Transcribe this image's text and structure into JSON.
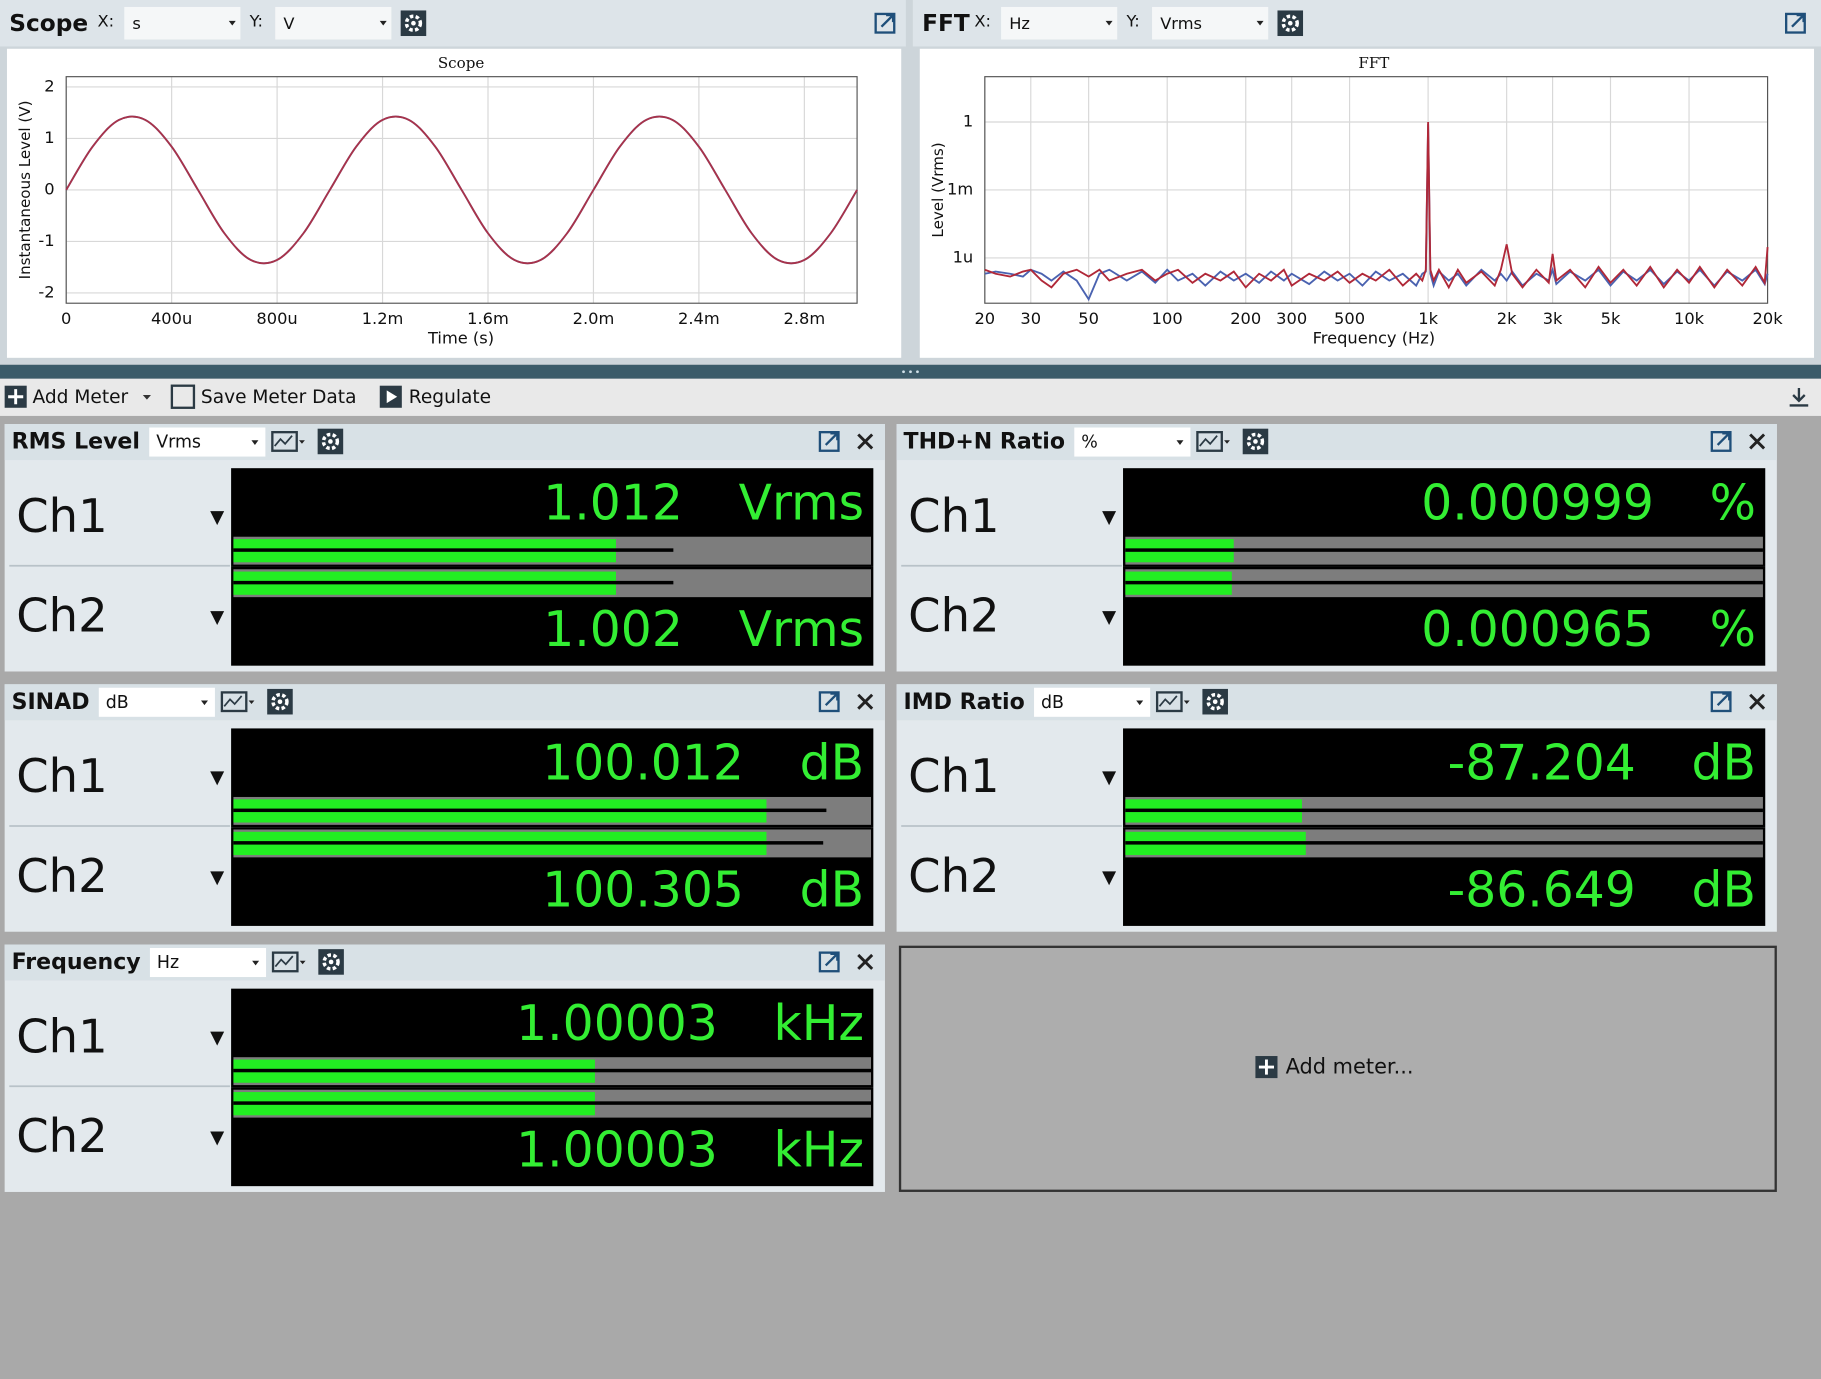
{
  "scope_panel": {
    "title": "Scope",
    "x_label": "X:",
    "x_unit": "s",
    "y_label": "Y:",
    "y_unit": "V"
  },
  "fft_panel": {
    "title": "FFT",
    "x_label": "X:",
    "x_unit": "Hz",
    "y_label": "Y:",
    "y_unit": "Vrms"
  },
  "chart_data": [
    {
      "type": "line",
      "title": "Scope",
      "x_label": "Time (s)",
      "y_label": "Instantaneous Level (V)",
      "x": [
        0,
        0.0001,
        0.0002,
        0.0003,
        0.0004,
        0.0005,
        0.0006,
        0.0007,
        0.0008,
        0.0009,
        0.001,
        0.0011,
        0.0012,
        0.0013,
        0.0014,
        0.0015,
        0.0016,
        0.0017,
        0.0018,
        0.0019,
        0.002,
        0.0021,
        0.0022,
        0.0023,
        0.0024,
        0.0025,
        0.0026,
        0.0027,
        0.0028,
        0.0029,
        0.003
      ],
      "series": [
        {
          "color": "#5a6fb8",
          "values": [
            0,
            0.841,
            1.36,
            1.36,
            0.841,
            0,
            -0.841,
            -1.36,
            -1.36,
            -0.841,
            0,
            0.841,
            1.36,
            1.36,
            0.841,
            0,
            -0.841,
            -1.36,
            -1.36,
            -0.841,
            0,
            0.841,
            1.36,
            1.36,
            0.841,
            0,
            -0.841,
            -1.36,
            -1.36,
            -0.841,
            0
          ]
        },
        {
          "color": "#a8334a",
          "values": [
            0,
            0.841,
            1.36,
            1.36,
            0.841,
            0,
            -0.841,
            -1.36,
            -1.36,
            -0.841,
            0,
            0.841,
            1.36,
            1.36,
            0.841,
            0,
            -0.841,
            -1.36,
            -1.36,
            -0.841,
            0,
            0.841,
            1.36,
            1.36,
            0.841,
            0,
            -0.841,
            -1.36,
            -1.36,
            -0.841,
            0
          ]
        }
      ],
      "xlim": [
        0,
        0.003
      ],
      "xticks": [
        0,
        {
          "value": 0.0004,
          "label": "400u"
        },
        {
          "value": 0.0008,
          "label": "800u"
        },
        {
          "value": 0.0012,
          "label": "1.2m"
        },
        {
          "value": 0.0016,
          "label": "1.6m"
        },
        {
          "value": 0.002,
          "label": "2.0m"
        },
        {
          "value": 0.0024,
          "label": "2.4m"
        },
        {
          "value": 0.0028,
          "label": "2.8m"
        }
      ],
      "ylim": [
        -2.2,
        2.2
      ],
      "yticks": [
        -2,
        -1,
        0,
        1,
        2
      ],
      "grid": true
    },
    {
      "type": "line",
      "title": "FFT",
      "x_label": "Frequency (Hz)",
      "y_label": "Level (Vrms)",
      "log_x": true,
      "log_y": true,
      "x": [
        20,
        22,
        25,
        28,
        30,
        33,
        36,
        40,
        45,
        50,
        55,
        60,
        70,
        80,
        90,
        100,
        110,
        125,
        140,
        160,
        180,
        200,
        225,
        250,
        280,
        300,
        350,
        400,
        450,
        500,
        560,
        630,
        710,
        800,
        900,
        950,
        980,
        1000,
        1020,
        1050,
        1100,
        1200,
        1300,
        1400,
        1600,
        1800,
        1900,
        2000,
        2100,
        2300,
        2600,
        2900,
        3000,
        3100,
        3500,
        4000,
        4500,
        5000,
        5600,
        6300,
        7100,
        8000,
        9000,
        10000,
        11000,
        12500,
        14000,
        16000,
        18000,
        19500,
        20000
      ],
      "series": [
        {
          "color": "#4a62b0",
          "values": [
            2e-07,
            2.5e-07,
            2e-07,
            1.5e-07,
            3e-07,
            2e-07,
            1e-07,
            2.5e-07,
            1e-07,
            1.5e-08,
            2e-07,
            3e-07,
            1e-07,
            2.5e-07,
            8e-08,
            3e-07,
            1e-07,
            2e-07,
            6e-08,
            2.5e-07,
            1e-07,
            2e-07,
            8e-08,
            2.5e-07,
            1e-07,
            2e-07,
            7e-08,
            2.5e-07,
            1e-07,
            2e-07,
            6e-08,
            2.5e-07,
            1e-07,
            2e-07,
            6e-08,
            2e-07,
            2.5e-07,
            0.8,
            2e-07,
            6e-08,
            2.5e-07,
            1e-07,
            2e-07,
            6e-08,
            3e-07,
            1e-07,
            2e-07,
            1e-07,
            2.5e-07,
            6e-08,
            2e-07,
            1e-07,
            3e-07,
            7e-08,
            2.5e-07,
            1e-07,
            3e-07,
            6e-08,
            2.5e-07,
            1e-07,
            3e-07,
            7e-08,
            2.5e-07,
            1e-07,
            3e-07,
            6e-08,
            2.5e-07,
            1e-07,
            3e-07,
            7e-08,
            2e-07
          ]
        },
        {
          "color": "#b02838",
          "values": [
            3e-07,
            2e-07,
            1.5e-07,
            2.5e-07,
            3e-07,
            1e-07,
            5e-08,
            2e-07,
            3e-07,
            1.5e-07,
            3e-07,
            1e-07,
            2e-07,
            3e-07,
            1e-07,
            2e-07,
            3e-07,
            8e-08,
            2e-07,
            1e-07,
            2.5e-07,
            5e-08,
            2e-07,
            1e-07,
            3e-07,
            6e-08,
            2e-07,
            1e-07,
            2.5e-07,
            8e-08,
            2e-07,
            1e-07,
            3e-07,
            6e-08,
            2e-07,
            1e-07,
            3e-07,
            1,
            3e-07,
            1e-07,
            3e-07,
            5e-08,
            3e-07,
            8e-08,
            2.5e-07,
            6e-08,
            3e-07,
            4e-06,
            2e-07,
            5e-08,
            3e-07,
            8e-08,
            1.5e-06,
            1e-07,
            3e-07,
            5e-08,
            4e-07,
            8e-08,
            3e-07,
            6e-08,
            4e-07,
            5e-08,
            3e-07,
            8e-08,
            4e-07,
            5e-08,
            3e-07,
            6e-08,
            4e-07,
            8e-08,
            3e-06
          ]
        }
      ],
      "xlim": [
        20,
        20000
      ],
      "xticks": [
        20,
        30,
        50,
        100,
        200,
        300,
        500,
        {
          "value": 1000,
          "label": "1k"
        },
        {
          "value": 2000,
          "label": "2k"
        },
        {
          "value": 3000,
          "label": "3k"
        },
        {
          "value": 5000,
          "label": "5k"
        },
        {
          "value": 10000,
          "label": "10k"
        },
        {
          "value": 20000,
          "label": "20k"
        }
      ],
      "ylim": [
        1e-08,
        100
      ],
      "yticks": [
        1,
        {
          "value": 0.001,
          "label": "1m"
        },
        {
          "value": 1e-06,
          "label": "1u"
        }
      ],
      "grid": true
    }
  ],
  "toolbar": {
    "add_meter": "Add Meter",
    "save_meter_data": "Save Meter Data",
    "regulate": "Regulate"
  },
  "meters": [
    {
      "title": "RMS Level",
      "unit": "Vrms",
      "channels": [
        {
          "name": "Ch1",
          "reading": "1.012",
          "unit": "Vrms",
          "bar": 0.6,
          "peak": 0.69
        },
        {
          "name": "Ch2",
          "reading": "1.002",
          "unit": "Vrms",
          "bar": 0.6,
          "peak": 0.69
        }
      ]
    },
    {
      "title": "THD+N Ratio",
      "unit": "%",
      "channels": [
        {
          "name": "Ch1",
          "reading": "0.000999",
          "unit": "%",
          "bar": 0.17,
          "peak": 1
        },
        {
          "name": "Ch2",
          "reading": "0.000965",
          "unit": "%",
          "bar": 0.167,
          "peak": 1
        }
      ]
    },
    {
      "title": "SINAD",
      "unit": "dB",
      "channels": [
        {
          "name": "Ch1",
          "reading": "100.012",
          "unit": "dB",
          "bar": 0.836,
          "peak": 0.93
        },
        {
          "name": "Ch2",
          "reading": "100.305",
          "unit": "dB",
          "bar": 0.836,
          "peak": 0.925
        }
      ]
    },
    {
      "title": "IMD Ratio",
      "unit": "dB",
      "channels": [
        {
          "name": "Ch1",
          "reading": "-87.204",
          "unit": "dB",
          "bar": 0.277,
          "peak": 1
        },
        {
          "name": "Ch2",
          "reading": "-86.649",
          "unit": "dB",
          "bar": 0.283,
          "peak": 1
        }
      ]
    },
    {
      "title": "Frequency",
      "unit": "Hz",
      "channels": [
        {
          "name": "Ch1",
          "reading": "1.00003",
          "unit": "kHz",
          "bar": 0.567,
          "peak": 1
        },
        {
          "name": "Ch2",
          "reading": "1.00003",
          "unit": "kHz",
          "bar": 0.567,
          "peak": 1
        }
      ]
    }
  ],
  "add_meter_placeholder": "Add meter..."
}
